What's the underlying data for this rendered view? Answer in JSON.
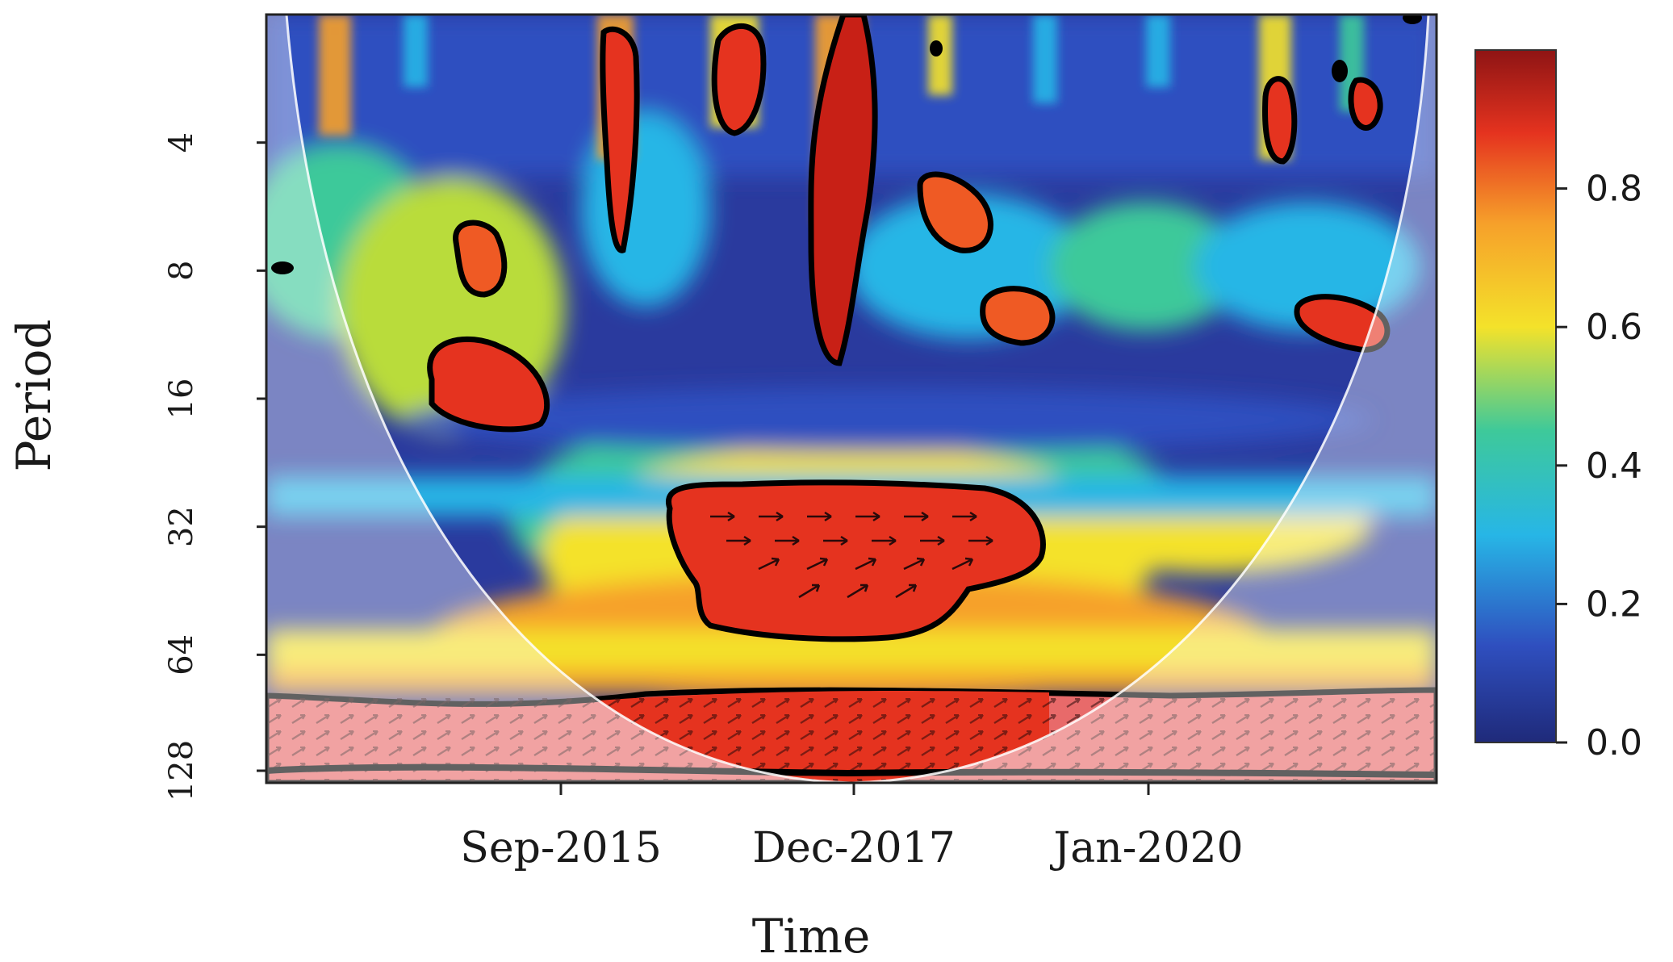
{
  "chart_data": {
    "type": "heatmap",
    "subtype": "wavelet-coherence",
    "xlabel": "Time",
    "ylabel": "Period",
    "x_ticks": [
      "Sep-2015",
      "Dec-2017",
      "Jan-2020"
    ],
    "y_ticks": [
      "4",
      "8",
      "16",
      "32",
      "64",
      "128"
    ],
    "y_scale": "log2",
    "y_range": [
      2,
      128
    ],
    "colorbar": {
      "ticks": [
        "0.0",
        "0.2",
        "0.4",
        "0.6",
        "0.8"
      ],
      "range": [
        0,
        1
      ],
      "colors": [
        "#1f2a7a",
        "#2f5ad0",
        "#27b6e6",
        "#3ec99a",
        "#f4e22a",
        "#f6a02a",
        "#e5331f",
        "#8e1414"
      ]
    },
    "cone_of_influence": true,
    "significance_contours": true,
    "phase_arrows": true,
    "regions": [
      {
        "center_time": "Mar-2016",
        "period": 16,
        "coherence": 0.85
      },
      {
        "center_time": "Mar-2016",
        "period": 8,
        "coherence": 0.75
      },
      {
        "center_time": "Sep-2016",
        "period": 4,
        "coherence": 0.9
      },
      {
        "center_time": "Jun-2017",
        "period": 3,
        "coherence": 0.85
      },
      {
        "center_time": "Dec-2017",
        "period": 6,
        "coherence": 0.9
      },
      {
        "center_time": "Jul-2018",
        "period": 6,
        "coherence": 0.8
      },
      {
        "center_time": "Dec-2018",
        "period": 11,
        "coherence": 0.8
      },
      {
        "center_time": "Sep-2020",
        "period": 4,
        "coherence": 0.85
      },
      {
        "center_time": "Jun-2021",
        "period": 11,
        "coherence": 0.8
      },
      {
        "center_time": "Dec-2017",
        "period": 40,
        "coherence": 0.85
      },
      {
        "center_time": "Dec-2017",
        "period": 110,
        "coherence": 0.8
      }
    ]
  }
}
